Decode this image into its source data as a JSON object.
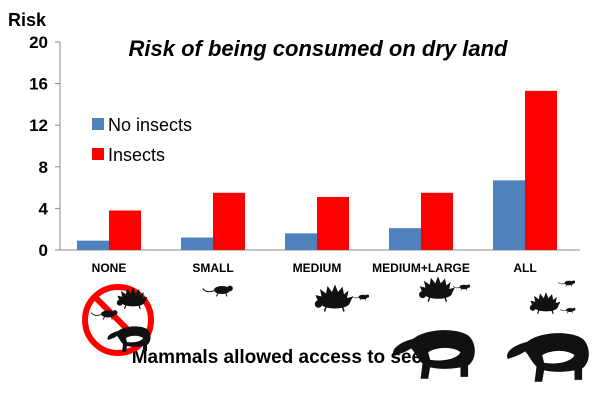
{
  "chart_data": {
    "type": "bar",
    "title": "Risk of being consumed on dry land",
    "ylabel": "Risk",
    "xlabel": "Mammals allowed access to seeds",
    "categories": [
      "NONE",
      "SMALL",
      "MEDIUM",
      "MEDIUM+LARGE",
      "ALL"
    ],
    "series": [
      {
        "name": "No insects",
        "color": "#4f81bd",
        "values": [
          0.9,
          1.2,
          1.6,
          2.1,
          6.7
        ]
      },
      {
        "name": "Insects",
        "color": "#ff0000",
        "values": [
          3.8,
          5.5,
          5.1,
          5.5,
          15.3
        ]
      }
    ],
    "ylim": [
      0,
      20
    ],
    "yticks": [
      "0",
      "4",
      "8",
      "12",
      "16",
      "20"
    ],
    "grid": false,
    "legend": "upper-left",
    "mammal_icons": [
      [
        "no-mammals-crossed-out-icon"
      ],
      [
        "rodent-icon"
      ],
      [
        "porcupine-icon",
        "rodent-icon"
      ],
      [
        "porcupine-icon",
        "rodent-icon",
        "tapir-icon"
      ],
      [
        "rodent-icon",
        "porcupine-icon",
        "rodent-icon",
        "tapir-icon"
      ]
    ]
  }
}
